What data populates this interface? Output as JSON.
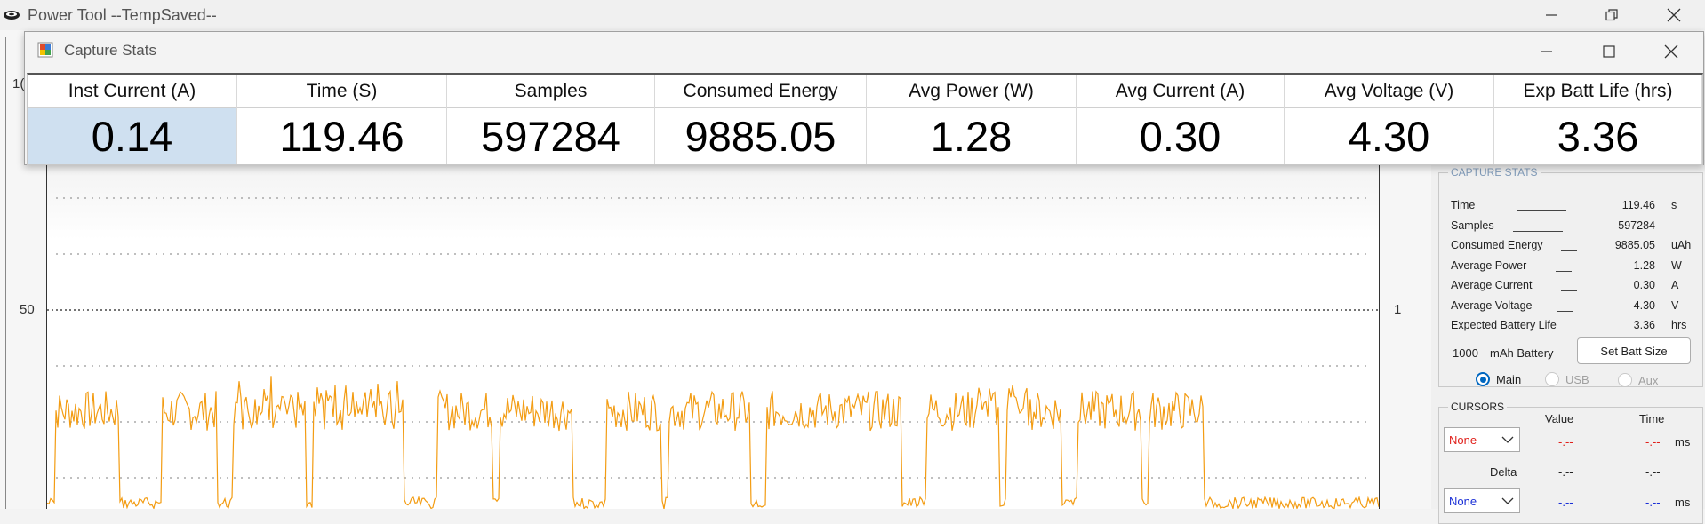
{
  "main_window": {
    "title": "Power Tool --TempSaved--"
  },
  "plot": {
    "left_tick_top": "1(",
    "left_tick_mid": "50",
    "right_tick_mid": "1",
    "trace_color": "#f39c12"
  },
  "stats_window": {
    "title": "Capture Stats",
    "columns": [
      {
        "header": "Inst Current (A)",
        "value": "0.14"
      },
      {
        "header": "Time (S)",
        "value": "119.46"
      },
      {
        "header": "Samples",
        "value": "597284"
      },
      {
        "header": "Consumed Energy",
        "value": "9885.05"
      },
      {
        "header": "Avg Power (W)",
        "value": "1.28"
      },
      {
        "header": "Avg Current (A)",
        "value": "0.30"
      },
      {
        "header": "Avg Voltage (V)",
        "value": "4.30"
      },
      {
        "header": "Exp Batt Life (hrs)",
        "value": "3.36"
      }
    ]
  },
  "capture_stats_panel": {
    "title": "CAPTURE STATS",
    "rows": [
      {
        "label": "Time",
        "value": "119.46",
        "unit": "s"
      },
      {
        "label": "Samples",
        "value": "597284",
        "unit": ""
      },
      {
        "label": "Consumed Energy",
        "value": "9885.05",
        "unit": "uAh"
      },
      {
        "label": "Average Power",
        "value": "1.28",
        "unit": "W"
      },
      {
        "label": "Average Current",
        "value": "0.30",
        "unit": "A"
      },
      {
        "label": "Average Voltage",
        "value": "4.30",
        "unit": "V"
      },
      {
        "label": "Expected Battery Life",
        "value": "3.36",
        "unit": "hrs"
      }
    ],
    "battery_value": "1000",
    "battery_label": "mAh Battery",
    "set_batt_button": "Set Batt Size",
    "radios": [
      {
        "label": "Main",
        "selected": true
      },
      {
        "label": "USB",
        "selected": false
      },
      {
        "label": "Aux",
        "selected": false
      }
    ]
  },
  "cursors_panel": {
    "title": "CURSORS",
    "value_header": "Value",
    "time_header": "Time",
    "cursor1": {
      "select": "None",
      "value": "-.--",
      "time": "-.--",
      "unit": "ms",
      "color": "#e0201b"
    },
    "delta_label": "Delta",
    "delta_value": "-.--",
    "delta_time": "-.--",
    "cursor2": {
      "select": "None",
      "value": "-.--",
      "time": "-.--",
      "unit": "ms",
      "color": "#1a2fd6"
    }
  }
}
